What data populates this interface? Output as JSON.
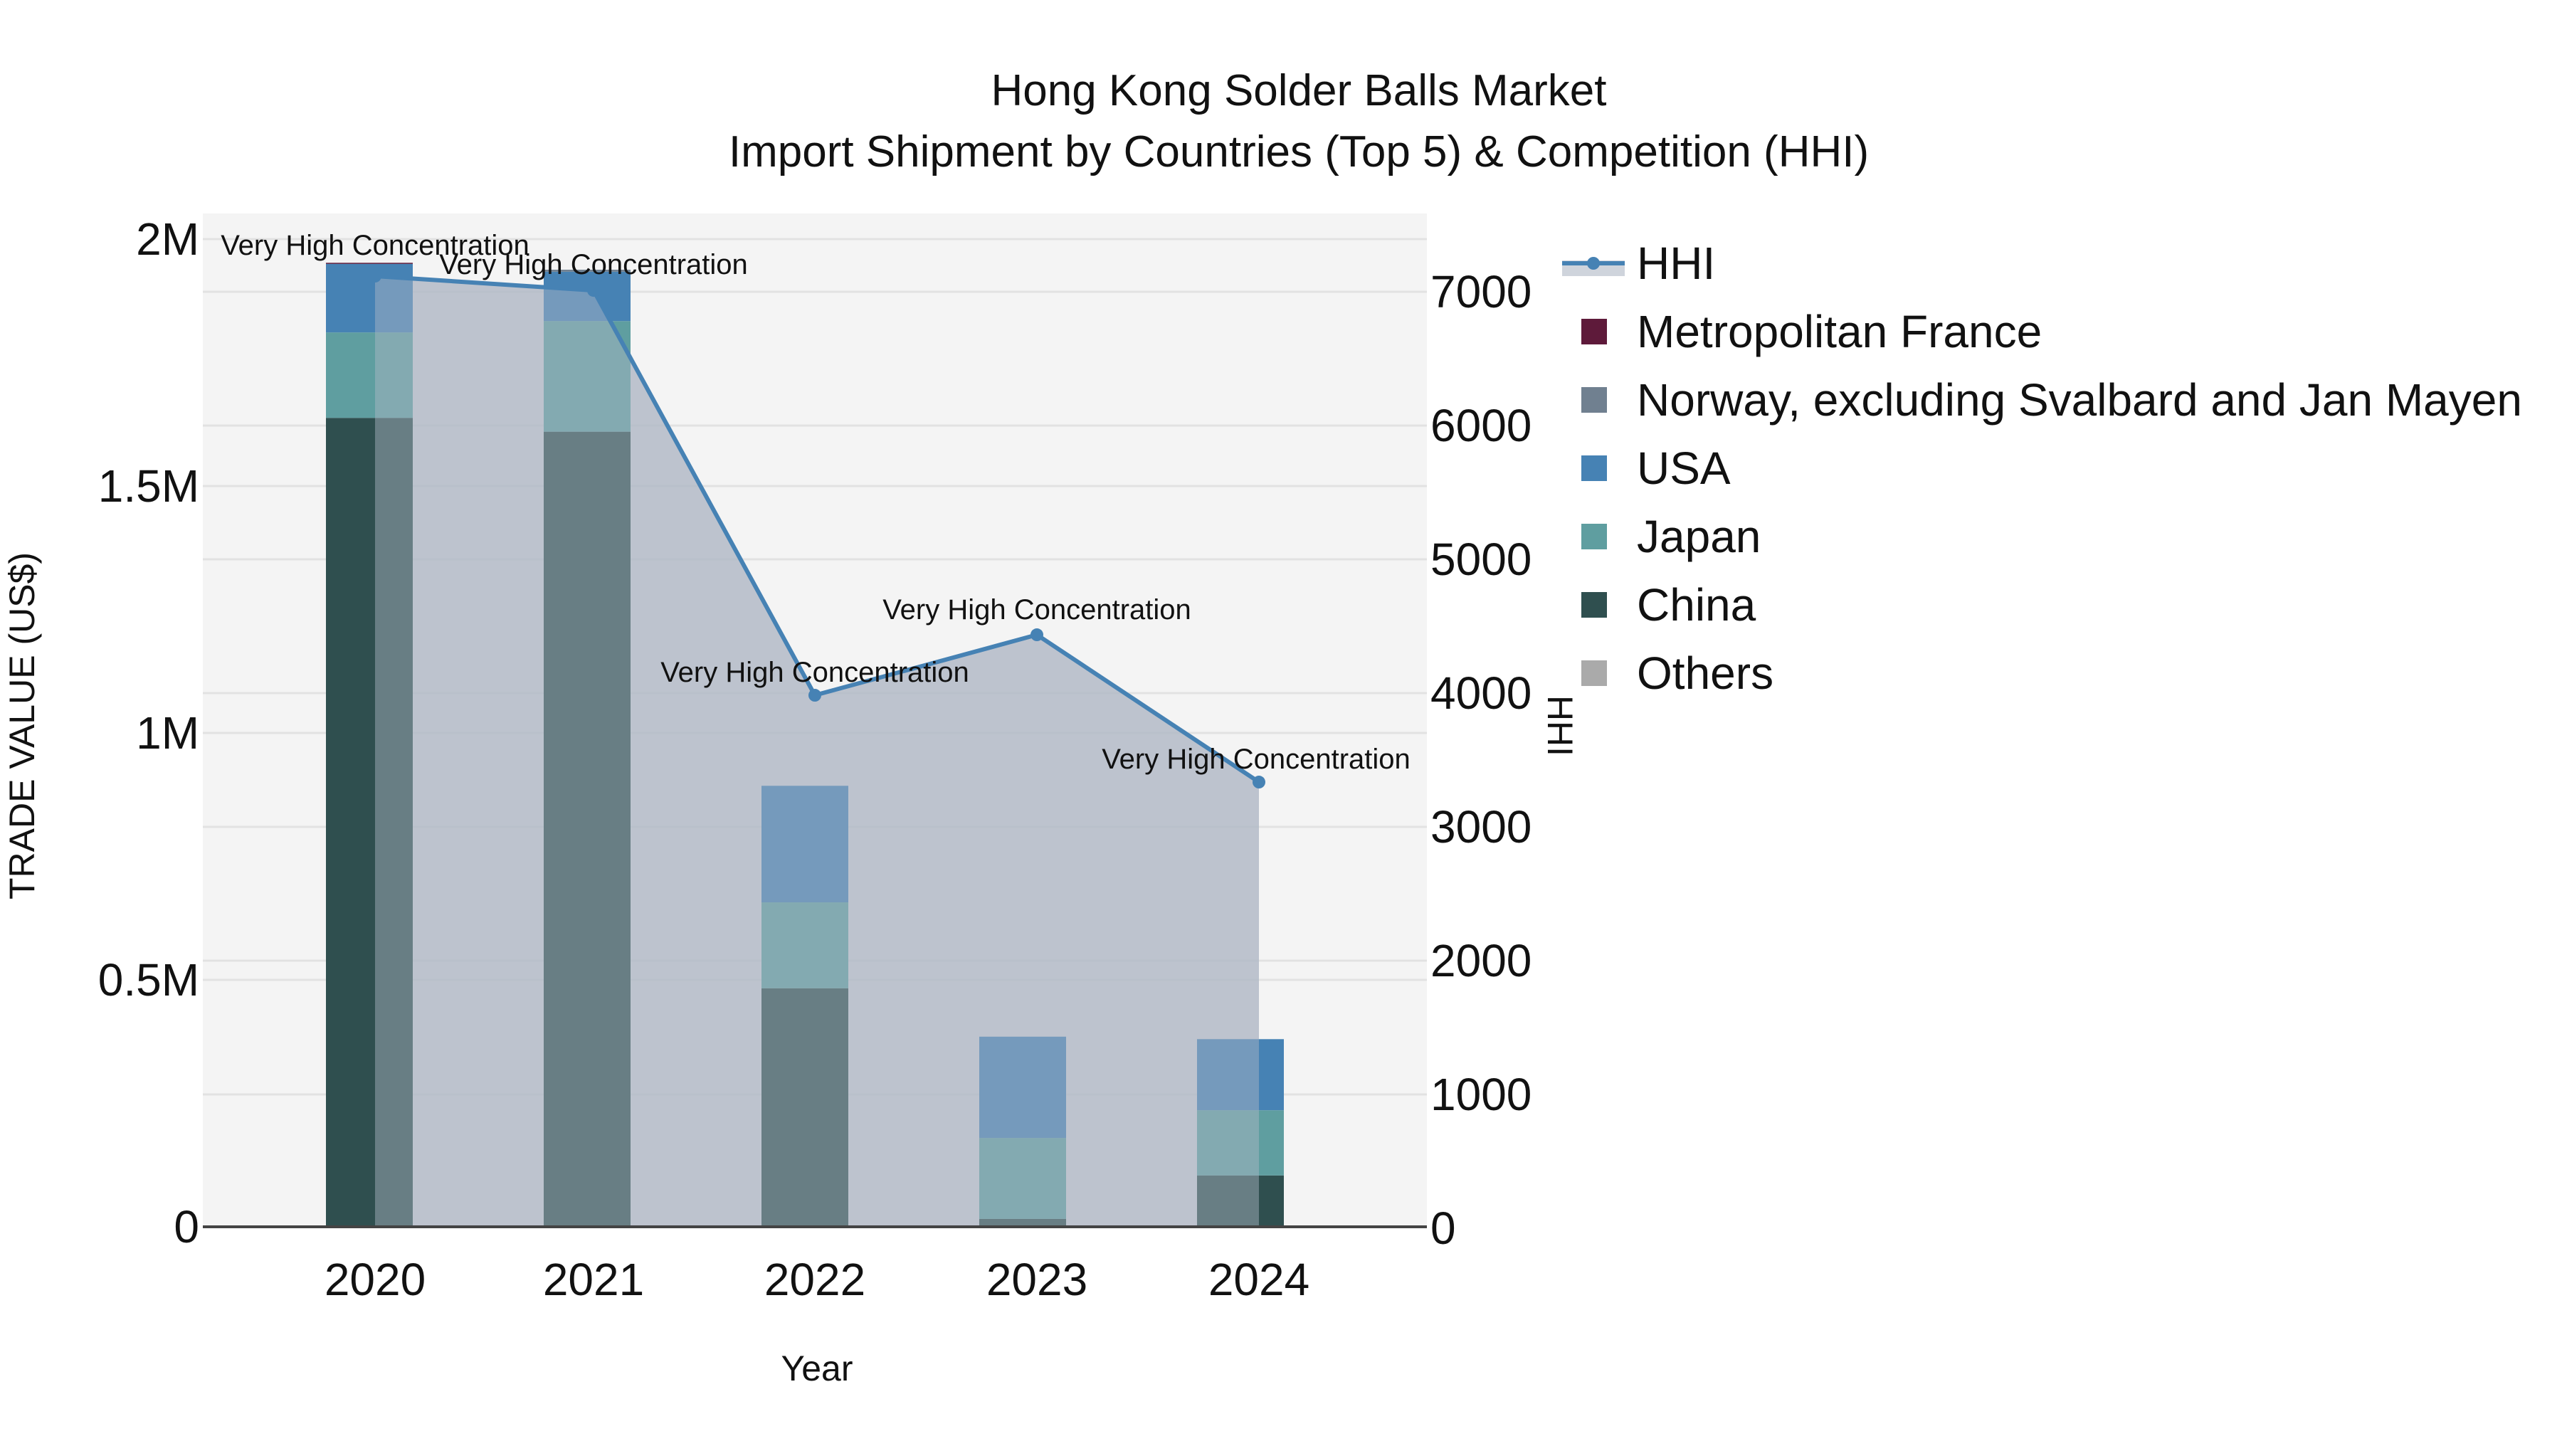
{
  "chart_data": {
    "type": "bar",
    "subtype": "stacked bar with line overlay (secondary axis)",
    "title": "Hong Kong Solder Balls Market",
    "subtitle": "Import Shipment by Countries (Top 5) & Competition (HHI)",
    "xlabel": "Year",
    "ylabel": "TRADE VALUE (US$)",
    "y2label": "HHI",
    "categories": [
      "2020",
      "2021",
      "2022",
      "2023",
      "2024"
    ],
    "ylim": [
      0,
      2050000
    ],
    "y_ticks": [
      {
        "value": 0,
        "label": "0"
      },
      {
        "value": 500000,
        "label": "0.5M"
      },
      {
        "value": 1000000,
        "label": "1M"
      },
      {
        "value": 1500000,
        "label": "1.5M"
      },
      {
        "value": 2000000,
        "label": "2M"
      }
    ],
    "y2lim": [
      0,
      7550
    ],
    "y2_ticks": [
      {
        "value": 0,
        "label": "0"
      },
      {
        "value": 1000,
        "label": "1000"
      },
      {
        "value": 2000,
        "label": "2000"
      },
      {
        "value": 3000,
        "label": "3000"
      },
      {
        "value": 4000,
        "label": "4000"
      },
      {
        "value": 5000,
        "label": "5000"
      },
      {
        "value": 6000,
        "label": "6000"
      },
      {
        "value": 7000,
        "label": "7000"
      }
    ],
    "series": [
      {
        "name": "China",
        "color": "#2f4f4f",
        "values": [
          1638000,
          1610000,
          483000,
          16000,
          104000
        ]
      },
      {
        "name": "Japan",
        "color": "#5f9ea0",
        "values": [
          173000,
          224000,
          174000,
          164000,
          132000
        ]
      },
      {
        "name": "USA",
        "color": "#4682b4",
        "values": [
          139000,
          100000,
          236000,
          205000,
          144000
        ]
      },
      {
        "name": "Norway, excluding Svalbard and Jan Mayen",
        "color": "#708090",
        "values": [
          0,
          4000,
          0,
          0,
          0
        ]
      },
      {
        "name": "Metropolitan France",
        "color": "#5e1a3a",
        "values": [
          2000,
          0,
          0,
          0,
          0
        ]
      },
      {
        "name": "Others",
        "color": "#aaaaaa",
        "values": [
          0,
          0,
          0,
          0,
          0
        ]
      }
    ],
    "line_series": {
      "name": "HHI",
      "axis": "y2",
      "color": "#4682b4",
      "fill_color": "rgba(176,184,198,0.65)",
      "values": [
        7117,
        7010,
        3984,
        4436,
        3335
      ],
      "annotations": [
        "Very High Concentration",
        "Very High Concentration",
        "Very High Concentration",
        "Very High Concentration",
        "Very High Concentration"
      ]
    },
    "legend": {
      "position": "right",
      "entries": [
        "HHI",
        "Metropolitan France",
        "Norway, excluding Svalbard and Jan Mayen",
        "USA",
        "Japan",
        "China",
        "Others"
      ]
    },
    "grid": true,
    "plot_bgcolor": "#f4f4f4"
  },
  "legend_items": [
    {
      "label": "HHI",
      "color": "#4682b4",
      "kind": "line"
    },
    {
      "label": "Metropolitan France",
      "color": "#5e1a3a",
      "kind": "box"
    },
    {
      "label": "Norway, excluding Svalbard and Jan Mayen",
      "color": "#708090",
      "kind": "box"
    },
    {
      "label": "USA",
      "color": "#4682b4",
      "kind": "box"
    },
    {
      "label": "Japan",
      "color": "#5f9ea0",
      "kind": "box"
    },
    {
      "label": "China",
      "color": "#2f4f4f",
      "kind": "box"
    },
    {
      "label": "Others",
      "color": "#aaaaaa",
      "kind": "box"
    }
  ]
}
